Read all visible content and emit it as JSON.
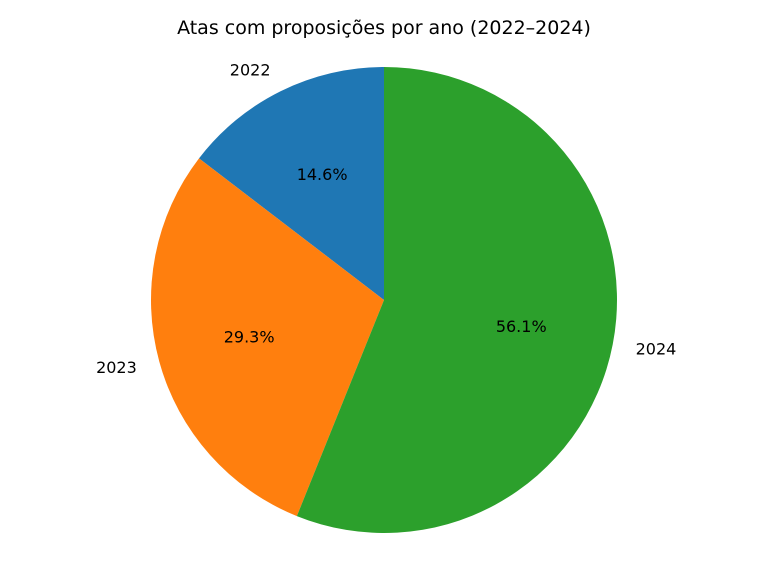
{
  "chart_data": {
    "type": "pie",
    "title": "Atas com proposições por ano (2022–2024)",
    "slices": [
      {
        "label": "2022",
        "value": 14.6,
        "pct_label": "14.6%",
        "color": "#1f77b4"
      },
      {
        "label": "2023",
        "value": 29.3,
        "pct_label": "29.3%",
        "color": "#ff7f0e"
      },
      {
        "label": "2024",
        "value": 56.1,
        "pct_label": "56.1%",
        "color": "#2ca02c"
      }
    ],
    "start_angle": "90 degrees (top), counter-clockwise",
    "legend": "none"
  }
}
